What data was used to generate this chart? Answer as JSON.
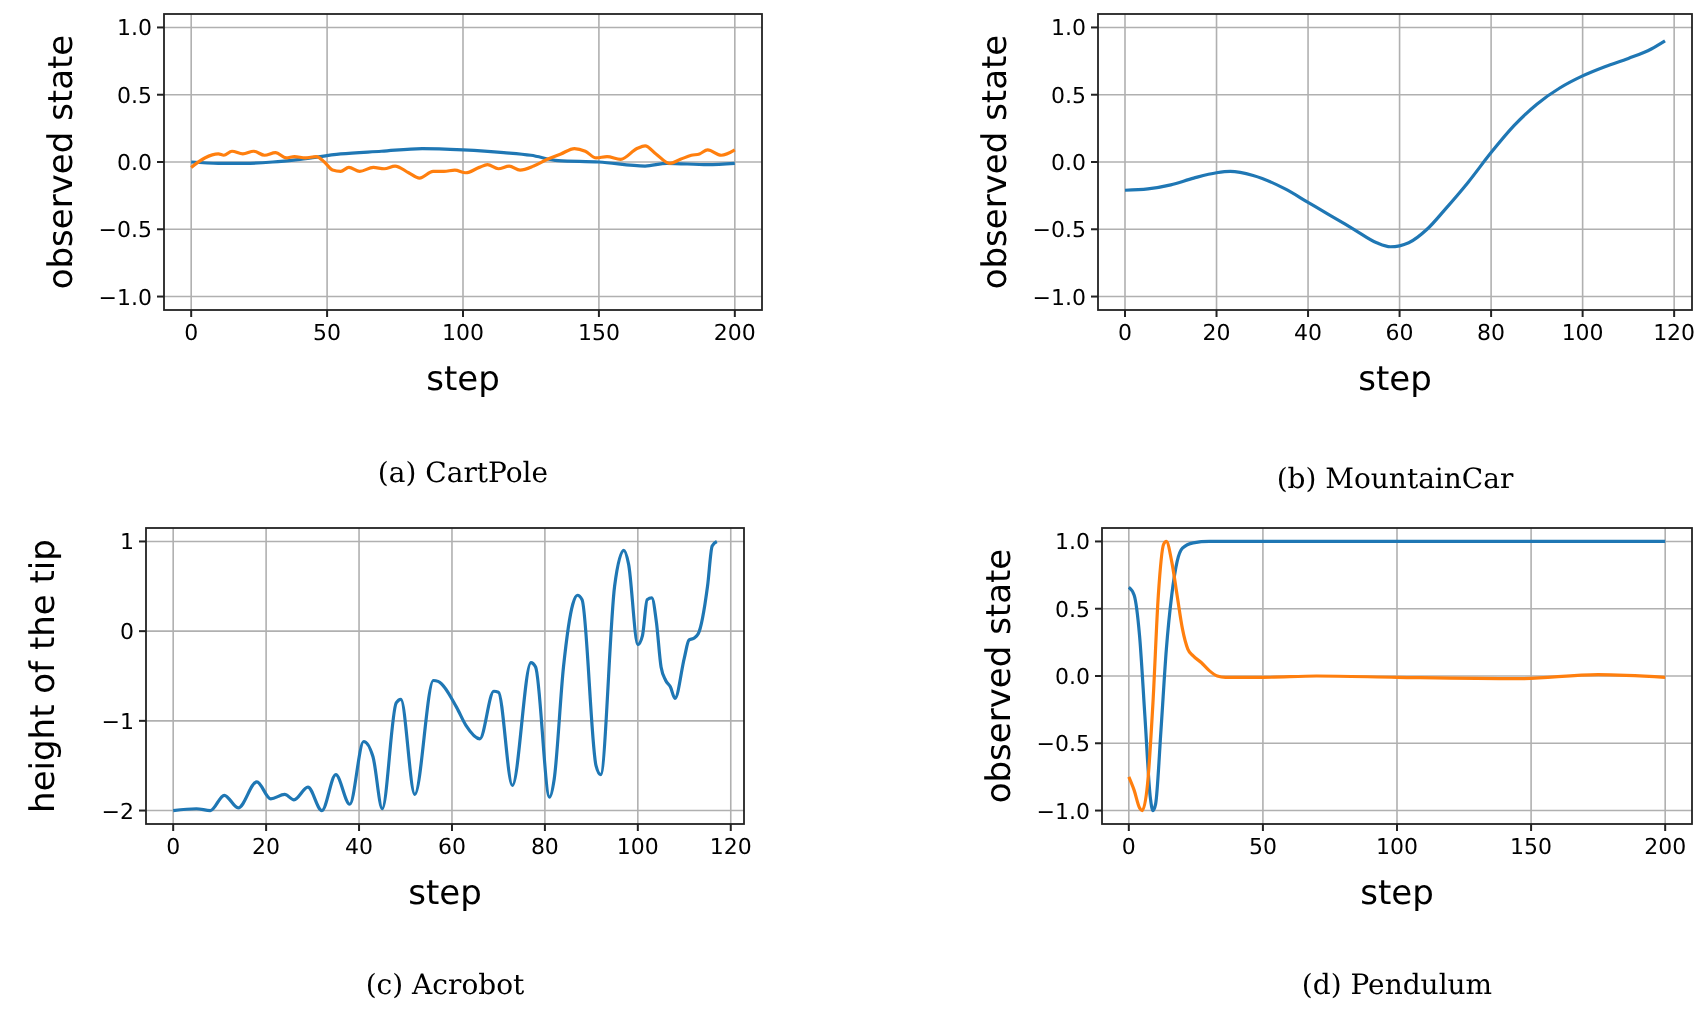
{
  "chart_data": [
    {
      "type": "line",
      "title": "(a) CartPole",
      "xlabel": "step",
      "ylabel": "observed state",
      "xlim": [
        -10,
        210
      ],
      "ylim": [
        -1.1,
        1.1
      ],
      "xticks": [
        0,
        50,
        100,
        150,
        200
      ],
      "yticks": [
        {
          "value": -1,
          "label": "−1.0"
        },
        {
          "value": -0.5,
          "label": "−0.5"
        },
        {
          "value": 0,
          "label": "0.0"
        },
        {
          "value": 0.5,
          "label": "0.5"
        },
        {
          "value": 1,
          "label": "1.0"
        }
      ],
      "grid": true,
      "line_style": "solid",
      "marker": "none",
      "series": [
        {
          "color": "#1f77b4",
          "x": [
            0,
            10,
            20,
            30,
            40,
            55,
            70,
            85,
            100,
            115,
            125,
            135,
            150,
            167,
            175,
            190,
            200
          ],
          "values": [
            0,
            -0.01,
            -0.01,
            0,
            0.02,
            0.06,
            0.08,
            0.1,
            0.09,
            0.07,
            0.05,
            0.01,
            0,
            -0.03,
            -0.01,
            -0.02,
            -0.01
          ]
        },
        {
          "color": "#ff7f0e",
          "x": [
            0,
            5,
            10,
            12,
            15,
            19,
            23,
            27,
            31,
            35,
            38,
            42,
            46,
            49,
            52,
            55,
            58,
            62,
            67,
            71,
            75,
            80,
            84,
            89,
            93,
            97,
            101,
            106,
            109,
            113,
            117,
            121,
            126,
            131,
            136,
            141,
            145,
            149,
            153,
            158,
            164,
            167,
            171,
            176,
            180,
            184,
            187,
            190,
            195,
            200
          ],
          "values": [
            -0.04,
            0.03,
            0.06,
            0.05,
            0.08,
            0.06,
            0.08,
            0.05,
            0.07,
            0.03,
            0.04,
            0.03,
            0.04,
            0,
            -0.06,
            -0.07,
            -0.04,
            -0.07,
            -0.04,
            -0.05,
            -0.03,
            -0.08,
            -0.12,
            -0.07,
            -0.07,
            -0.06,
            -0.08,
            -0.04,
            -0.02,
            -0.05,
            -0.03,
            -0.06,
            -0.03,
            0.02,
            0.06,
            0.1,
            0.08,
            0.03,
            0.04,
            0.02,
            0.1,
            0.12,
            0.06,
            -0.01,
            0.02,
            0.05,
            0.06,
            0.09,
            0.05,
            0.09
          ]
        }
      ]
    },
    {
      "type": "line",
      "title": "(b) MountainCar",
      "xlabel": "step",
      "ylabel": "observed state",
      "xlim": [
        -5.9,
        123.9
      ],
      "ylim": [
        -1.1,
        1.1
      ],
      "xticks": [
        0,
        20,
        40,
        60,
        80,
        100,
        120
      ],
      "yticks": [
        {
          "value": -1,
          "label": "−1.0"
        },
        {
          "value": -0.5,
          "label": "−0.5"
        },
        {
          "value": 0,
          "label": "0.0"
        },
        {
          "value": 0.5,
          "label": "0.5"
        },
        {
          "value": 1,
          "label": "1.0"
        }
      ],
      "grid": true,
      "line_style": "solid",
      "marker": "none",
      "series": [
        {
          "color": "#1f77b4",
          "x": [
            0,
            5,
            10,
            15,
            20,
            23,
            28,
            35,
            40,
            45,
            50,
            55,
            58,
            62,
            66,
            70,
            75,
            80,
            85,
            90,
            95,
            100,
            105,
            110,
            115,
            118
          ],
          "values": [
            -0.21,
            -0.2,
            -0.17,
            -0.12,
            -0.08,
            -0.07,
            -0.1,
            -0.2,
            -0.3,
            -0.4,
            -0.5,
            -0.6,
            -0.63,
            -0.6,
            -0.5,
            -0.35,
            -0.15,
            0.07,
            0.27,
            0.43,
            0.55,
            0.64,
            0.71,
            0.77,
            0.84,
            0.9
          ]
        }
      ]
    },
    {
      "type": "line",
      "title": "(c) Acrobot",
      "xlabel": "step",
      "ylabel": "height of the tip",
      "xlim": [
        -5.85,
        122.85
      ],
      "ylim": [
        -2.15,
        1.15
      ],
      "xticks": [
        0,
        20,
        40,
        60,
        80,
        100,
        120
      ],
      "yticks": [
        {
          "value": -2,
          "label": "−2"
        },
        {
          "value": -1,
          "label": "−1"
        },
        0,
        1
      ],
      "grid": true,
      "line_style": "solid",
      "marker": "none",
      "series": [
        {
          "color": "#1f77b4",
          "x": [
            0,
            5,
            8,
            11,
            14,
            18,
            21,
            24,
            26,
            29,
            32,
            35,
            38,
            41,
            43,
            45,
            48,
            49,
            52,
            56,
            57,
            61,
            63,
            66,
            69,
            70,
            73,
            77,
            78,
            81,
            82,
            84,
            86,
            87,
            88,
            91,
            92,
            95,
            97,
            98,
            100,
            101,
            102,
            103,
            104,
            105,
            106,
            107,
            108,
            110,
            111,
            112,
            113,
            115,
            116,
            117
          ],
          "values": [
            -2,
            -1.98,
            -2,
            -1.83,
            -1.97,
            -1.68,
            -1.87,
            -1.82,
            -1.88,
            -1.74,
            -2,
            -1.6,
            -1.93,
            -1.23,
            -1.4,
            -1.98,
            -0.8,
            -0.76,
            -1.82,
            -0.55,
            -0.56,
            -0.85,
            -1.05,
            -1.2,
            -0.67,
            -0.68,
            -1.72,
            -0.35,
            -0.4,
            -1.85,
            -1.65,
            -0.4,
            0.3,
            0.4,
            0.35,
            -1.5,
            -1.6,
            0.5,
            0.9,
            0.75,
            -0.15,
            -0.05,
            0.35,
            0.37,
            0.1,
            -0.4,
            -0.55,
            -0.62,
            -0.75,
            -0.3,
            -0.1,
            -0.08,
            -0.03,
            0.5,
            0.95,
            1
          ]
        }
      ]
    },
    {
      "type": "line",
      "title": "(d) Pendulum",
      "xlabel": "step",
      "ylabel": "observed state",
      "xlim": [
        -10,
        210
      ],
      "ylim": [
        -1.1,
        1.1
      ],
      "xticks": [
        0,
        50,
        100,
        150,
        200
      ],
      "yticks": [
        {
          "value": -1,
          "label": "−1.0"
        },
        {
          "value": -0.5,
          "label": "−0.5"
        },
        {
          "value": 0,
          "label": "0.0"
        },
        {
          "value": 0.5,
          "label": "0.5"
        },
        {
          "value": 1,
          "label": "1.0"
        }
      ],
      "grid": true,
      "line_style": "solid",
      "marker": "none",
      "series": [
        {
          "color": "#1f77b4",
          "x": [
            0,
            2,
            4,
            6,
            8,
            9,
            10,
            12,
            14,
            16,
            18,
            20,
            24,
            30,
            200
          ],
          "values": [
            0.66,
            0.6,
            0.3,
            -0.3,
            -0.9,
            -1,
            -0.95,
            -0.4,
            0.2,
            0.6,
            0.85,
            0.95,
            0.99,
            1,
            1
          ]
        },
        {
          "color": "#ff7f0e",
          "x": [
            0,
            2,
            4,
            5,
            7,
            9,
            11,
            13,
            14,
            16,
            18,
            20,
            22,
            24,
            27,
            30,
            33,
            36,
            50,
            70,
            100,
            145,
            175,
            200
          ],
          "values": [
            -0.75,
            -0.85,
            -0.98,
            -1,
            -0.8,
            -0.2,
            0.6,
            0.98,
            1,
            0.85,
            0.6,
            0.35,
            0.2,
            0.15,
            0.1,
            0.04,
            0,
            -0.01,
            -0.01,
            0,
            -0.01,
            -0.02,
            0.01,
            -0.01
          ]
        }
      ]
    }
  ]
}
